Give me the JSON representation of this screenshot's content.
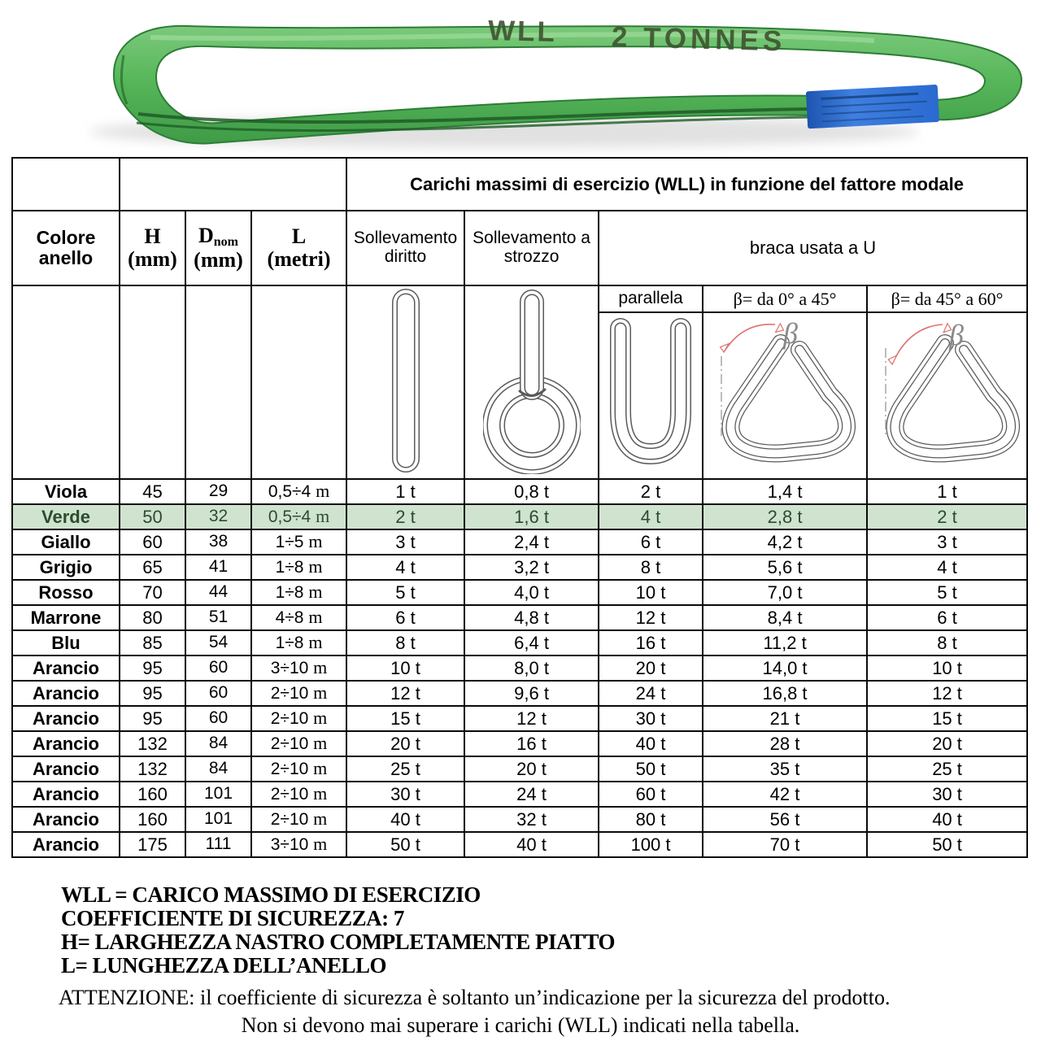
{
  "sling_photo": {
    "stamp_wll": "WLL",
    "stamp_tonnage": "2 TONNES",
    "green": "#57b75a",
    "green_light": "#7cc97c",
    "green_dark": "#3f9b47",
    "edge_green": "#2d7d36",
    "stamp_color": "#3e5430",
    "label_blue": "#2a6ad0"
  },
  "table": {
    "main_header": "Carichi massimi di esercizio (WLL) in funzione del fattore modale",
    "headers": {
      "colore": "Colore anello",
      "h_label": "H",
      "h_unit": "(mm)",
      "d_label": "D",
      "d_sub": "nom",
      "d_unit": "(mm)",
      "l_label": "L",
      "l_unit": "(metri)",
      "diritto": "Sollevamento diritto",
      "strozzo": "Sollevamento a strozzo",
      "braca": "braca usata a U",
      "parallela": "parallela",
      "beta_0_45": "β= da 0° a 45°",
      "beta_45_60": "β= da 45° a 60°"
    },
    "meter_unit": "m",
    "highlight_bg": "#cfe3cf",
    "highlight_text": "#2c4c2e",
    "rows": [
      {
        "colore": "Viola",
        "h": "45",
        "d": "29",
        "l": "0,5÷4",
        "diritto": "1 t",
        "strozzo": "0,8 t",
        "parallela": "2 t",
        "beta45": "1,4 t",
        "beta60": "1 t",
        "highlight": false
      },
      {
        "colore": "Verde",
        "h": "50",
        "d": "32",
        "l": "0,5÷4",
        "diritto": "2 t",
        "strozzo": "1,6 t",
        "parallela": "4 t",
        "beta45": "2,8 t",
        "beta60": "2 t",
        "highlight": true
      },
      {
        "colore": "Giallo",
        "h": "60",
        "d": "38",
        "l": "1÷5",
        "diritto": "3 t",
        "strozzo": "2,4 t",
        "parallela": "6 t",
        "beta45": "4,2 t",
        "beta60": "3 t",
        "highlight": false
      },
      {
        "colore": "Grigio",
        "h": "65",
        "d": "41",
        "l": "1÷8",
        "diritto": "4 t",
        "strozzo": "3,2 t",
        "parallela": "8 t",
        "beta45": "5,6 t",
        "beta60": "4 t",
        "highlight": false
      },
      {
        "colore": "Rosso",
        "h": "70",
        "d": "44",
        "l": "1÷8",
        "diritto": "5 t",
        "strozzo": "4,0 t",
        "parallela": "10 t",
        "beta45": "7,0 t",
        "beta60": "5 t",
        "highlight": false
      },
      {
        "colore": "Marrone",
        "h": "80",
        "d": "51",
        "l": "4÷8",
        "diritto": "6 t",
        "strozzo": "4,8 t",
        "parallela": "12 t",
        "beta45": "8,4 t",
        "beta60": "6 t",
        "highlight": false
      },
      {
        "colore": "Blu",
        "h": "85",
        "d": "54",
        "l": "1÷8",
        "diritto": "8 t",
        "strozzo": "6,4 t",
        "parallela": "16 t",
        "beta45": "11,2 t",
        "beta60": "8 t",
        "highlight": false
      },
      {
        "colore": "Arancio",
        "h": "95",
        "d": "60",
        "l": "3÷10",
        "diritto": "10 t",
        "strozzo": "8,0 t",
        "parallela": "20 t",
        "beta45": "14,0 t",
        "beta60": "10 t",
        "highlight": false
      },
      {
        "colore": "Arancio",
        "h": "95",
        "d": "60",
        "l": "2÷10",
        "diritto": "12 t",
        "strozzo": "9,6 t",
        "parallela": "24 t",
        "beta45": "16,8 t",
        "beta60": "12 t",
        "highlight": false
      },
      {
        "colore": "Arancio",
        "h": "95",
        "d": "60",
        "l": "2÷10",
        "diritto": "15 t",
        "strozzo": "12 t",
        "parallela": "30 t",
        "beta45": "21 t",
        "beta60": "15 t",
        "highlight": false
      },
      {
        "colore": "Arancio",
        "h": "132",
        "d": "84",
        "l": "2÷10",
        "diritto": "20 t",
        "strozzo": "16 t",
        "parallela": "40 t",
        "beta45": "28 t",
        "beta60": "20 t",
        "highlight": false
      },
      {
        "colore": "Arancio",
        "h": "132",
        "d": "84",
        "l": "2÷10",
        "diritto": "25 t",
        "strozzo": "20 t",
        "parallela": "50 t",
        "beta45": "35 t",
        "beta60": "25 t",
        "highlight": false
      },
      {
        "colore": "Arancio",
        "h": "160",
        "d": "101",
        "l": "2÷10",
        "diritto": "30 t",
        "strozzo": "24 t",
        "parallela": "60 t",
        "beta45": "42 t",
        "beta60": "30 t",
        "highlight": false
      },
      {
        "colore": "Arancio",
        "h": "160",
        "d": "101",
        "l": "2÷10",
        "diritto": "40 t",
        "strozzo": "32 t",
        "parallela": "80 t",
        "beta45": "56 t",
        "beta60": "40 t",
        "highlight": false
      },
      {
        "colore": "Arancio",
        "h": "175",
        "d": "111",
        "l": "3÷10",
        "diritto": "50 t",
        "strozzo": "40 t",
        "parallela": "100 t",
        "beta45": "70 t",
        "beta60": "50 t",
        "highlight": false
      }
    ]
  },
  "notes": {
    "bold_lines": [
      "WLL = CARICO MASSIMO DI ESERCIZIO",
      "COEFFICIENTE DI SICUREZZA: 7",
      "H= LARGHEZZA NASTRO COMPLETAMENTE PIATTO",
      "L= LUNGHEZZA DELL’ANELLO"
    ],
    "attention_line1": "ATTENZIONE: il coefficiente di sicurezza è soltanto un’indicazione per la sicurezza del prodotto.",
    "attention_line2": "Non si devono mai superare i carichi (WLL) indicati nella tabella."
  }
}
